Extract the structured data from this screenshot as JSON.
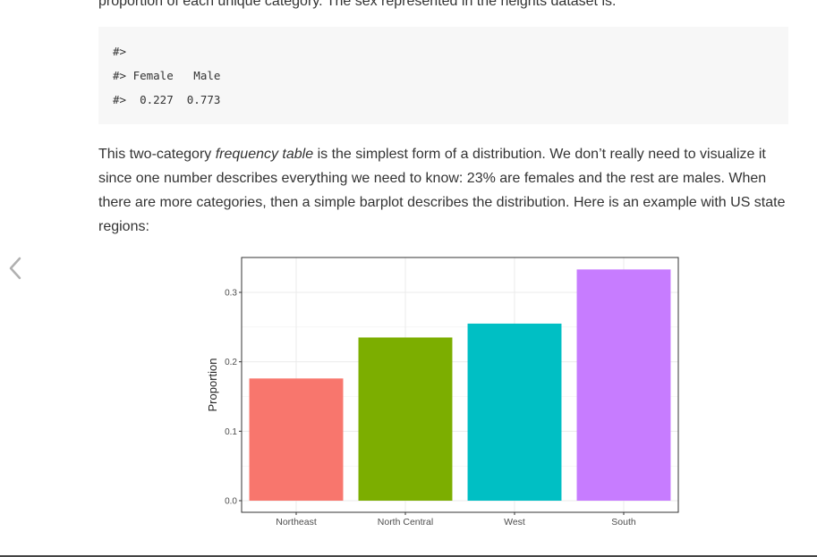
{
  "intro_text": "proportion of each unique category. The sex represented in the heights dataset is:",
  "code": {
    "lines": [
      "#>",
      "#> Female   Male",
      "#>  0.227  0.773"
    ]
  },
  "paragraph": {
    "before_em": "This two-category ",
    "em": "frequency table",
    "after_em": " is the simplest form of a distribution. We don’t really need to visualize it since one number describes everything we need to know: 23% are females and the rest are males. When there are more categories, then a simple barplot describes the distribution. Here is an example with US state regions:"
  },
  "nav": {
    "prev_icon": "chevron-left-icon"
  },
  "chart_data": {
    "type": "bar",
    "categories": [
      "Northeast",
      "North Central",
      "West",
      "South"
    ],
    "values": [
      0.176,
      0.235,
      0.255,
      0.333
    ],
    "colors": [
      "#F8766D",
      "#7CAE00",
      "#00BFC4",
      "#C77CFF"
    ],
    "title": "",
    "xlabel": "",
    "ylabel": "Proportion",
    "ylim": [
      0.0,
      0.35
    ],
    "yticks": [
      0.0,
      0.1,
      0.2,
      0.3
    ],
    "ytick_labels": [
      "0.0",
      "0.1",
      "0.2",
      "0.3"
    ],
    "grid": true,
    "legend": false
  }
}
